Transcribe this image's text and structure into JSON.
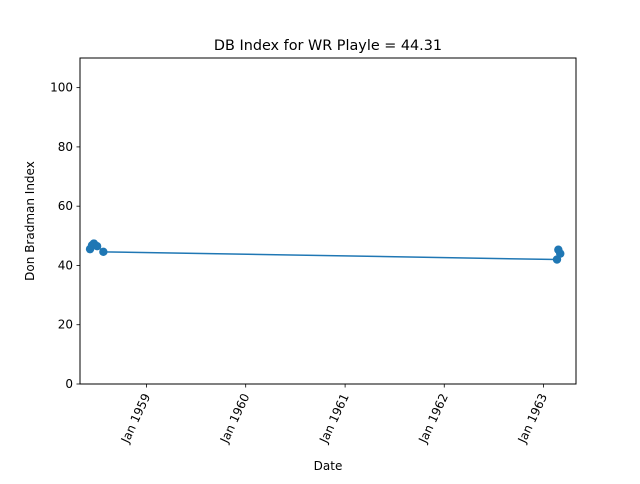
{
  "chart_data": {
    "type": "line",
    "title": "DB Index for WR Playle = 44.31",
    "xlabel": "Date",
    "ylabel": "Don Bradman Index",
    "xlim": [
      "1958-05-01",
      "1963-05-01"
    ],
    "ylim": [
      0,
      110
    ],
    "x_ticks": [
      {
        "value": "1959-01-01",
        "label": "Jan 1959"
      },
      {
        "value": "1960-01-01",
        "label": "Jan 1960"
      },
      {
        "value": "1961-01-01",
        "label": "Jan 1961"
      },
      {
        "value": "1962-01-01",
        "label": "Jan 1962"
      },
      {
        "value": "1963-01-01",
        "label": "Jan 1963"
      }
    ],
    "y_ticks": [
      0,
      20,
      40,
      60,
      80,
      100
    ],
    "grid": false,
    "series": [
      {
        "color": "#1f77b4",
        "points": [
          {
            "x": "1958-06-07",
            "y": 45.5
          },
          {
            "x": "1958-06-14",
            "y": 46.8
          },
          {
            "x": "1958-06-21",
            "y": 47.4
          },
          {
            "x": "1958-07-03",
            "y": 46.5
          },
          {
            "x": "1958-07-26",
            "y": 44.6
          },
          {
            "x": "1963-02-20",
            "y": 42.0
          },
          {
            "x": "1963-02-25",
            "y": 45.3
          },
          {
            "x": "1963-03-04",
            "y": 44.0
          }
        ]
      }
    ],
    "trend_line": {
      "color": "#1f77b4",
      "from": {
        "x": "1958-07-26",
        "y": 44.6
      },
      "to": {
        "x": "1963-03-04",
        "y": 42.0
      }
    }
  }
}
